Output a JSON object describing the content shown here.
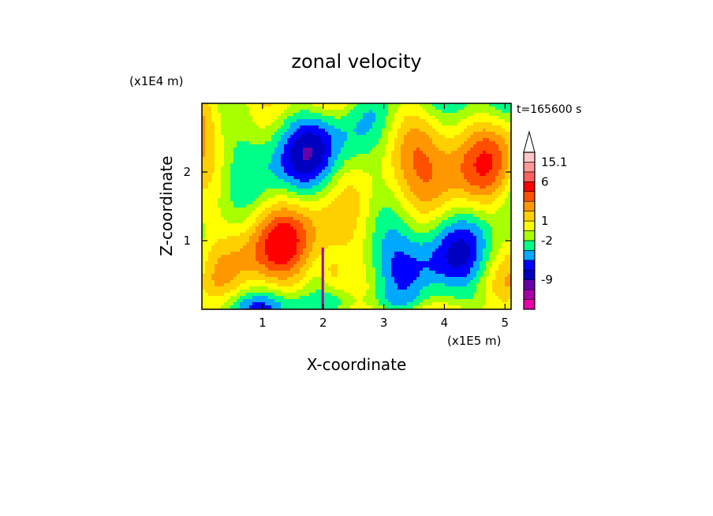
{
  "chart_data": {
    "type": "heatmap",
    "title": "zonal velocity",
    "xlabel": "X-coordinate",
    "ylabel": "Z-coordinate",
    "x_multiplier_label": "(x1E5 m)",
    "y_multiplier_label": "(x1E4 m)",
    "time_label": "t=165600 s",
    "xlim": [
      0,
      5.1
    ],
    "ylim": [
      0,
      3.0
    ],
    "x_ticks": [
      1,
      2,
      3,
      4,
      5
    ],
    "y_ticks": [
      1,
      2
    ],
    "x_tick_labels": [
      "1",
      "2",
      "3",
      "4",
      "5"
    ],
    "y_tick_labels": [
      "1",
      "2"
    ],
    "colorbar": {
      "colors": [
        "#e800a8",
        "#a800a8",
        "#6800a8",
        "#0000c0",
        "#0000ff",
        "#00a8ff",
        "#00ff88",
        "#a8ff00",
        "#ffff00",
        "#ffd000",
        "#ff9800",
        "#ff5000",
        "#ff0000",
        "#ff6060",
        "#ff9898",
        "#ffc8c8"
      ],
      "labels": [
        {
          "text": "15.1",
          "index": 14
        },
        {
          "text": "6",
          "index": 12
        },
        {
          "text": "1",
          "index": 8
        },
        {
          "text": "-2",
          "index": 6
        },
        {
          "text": "-9",
          "index": 2
        }
      ],
      "extend_max": true
    }
  }
}
